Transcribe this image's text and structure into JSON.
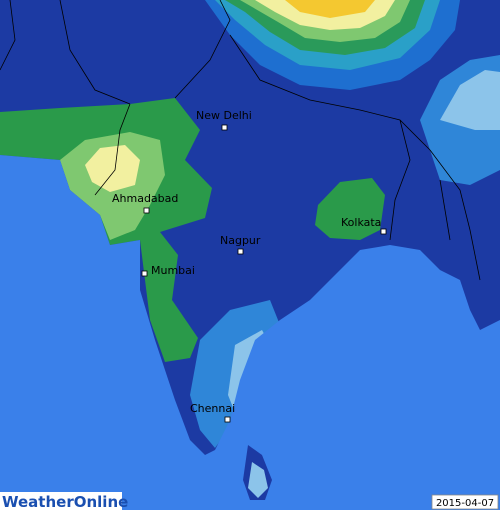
{
  "map": {
    "cities": [
      {
        "label": "New Delhi"
      },
      {
        "label": "Ahmadabad"
      },
      {
        "label": "Nagpur"
      },
      {
        "label": "Kolkata"
      },
      {
        "label": "Mumbai"
      },
      {
        "label": "Chennai"
      }
    ],
    "logo": "WeatherOnline",
    "date": "2015-04-07"
  }
}
